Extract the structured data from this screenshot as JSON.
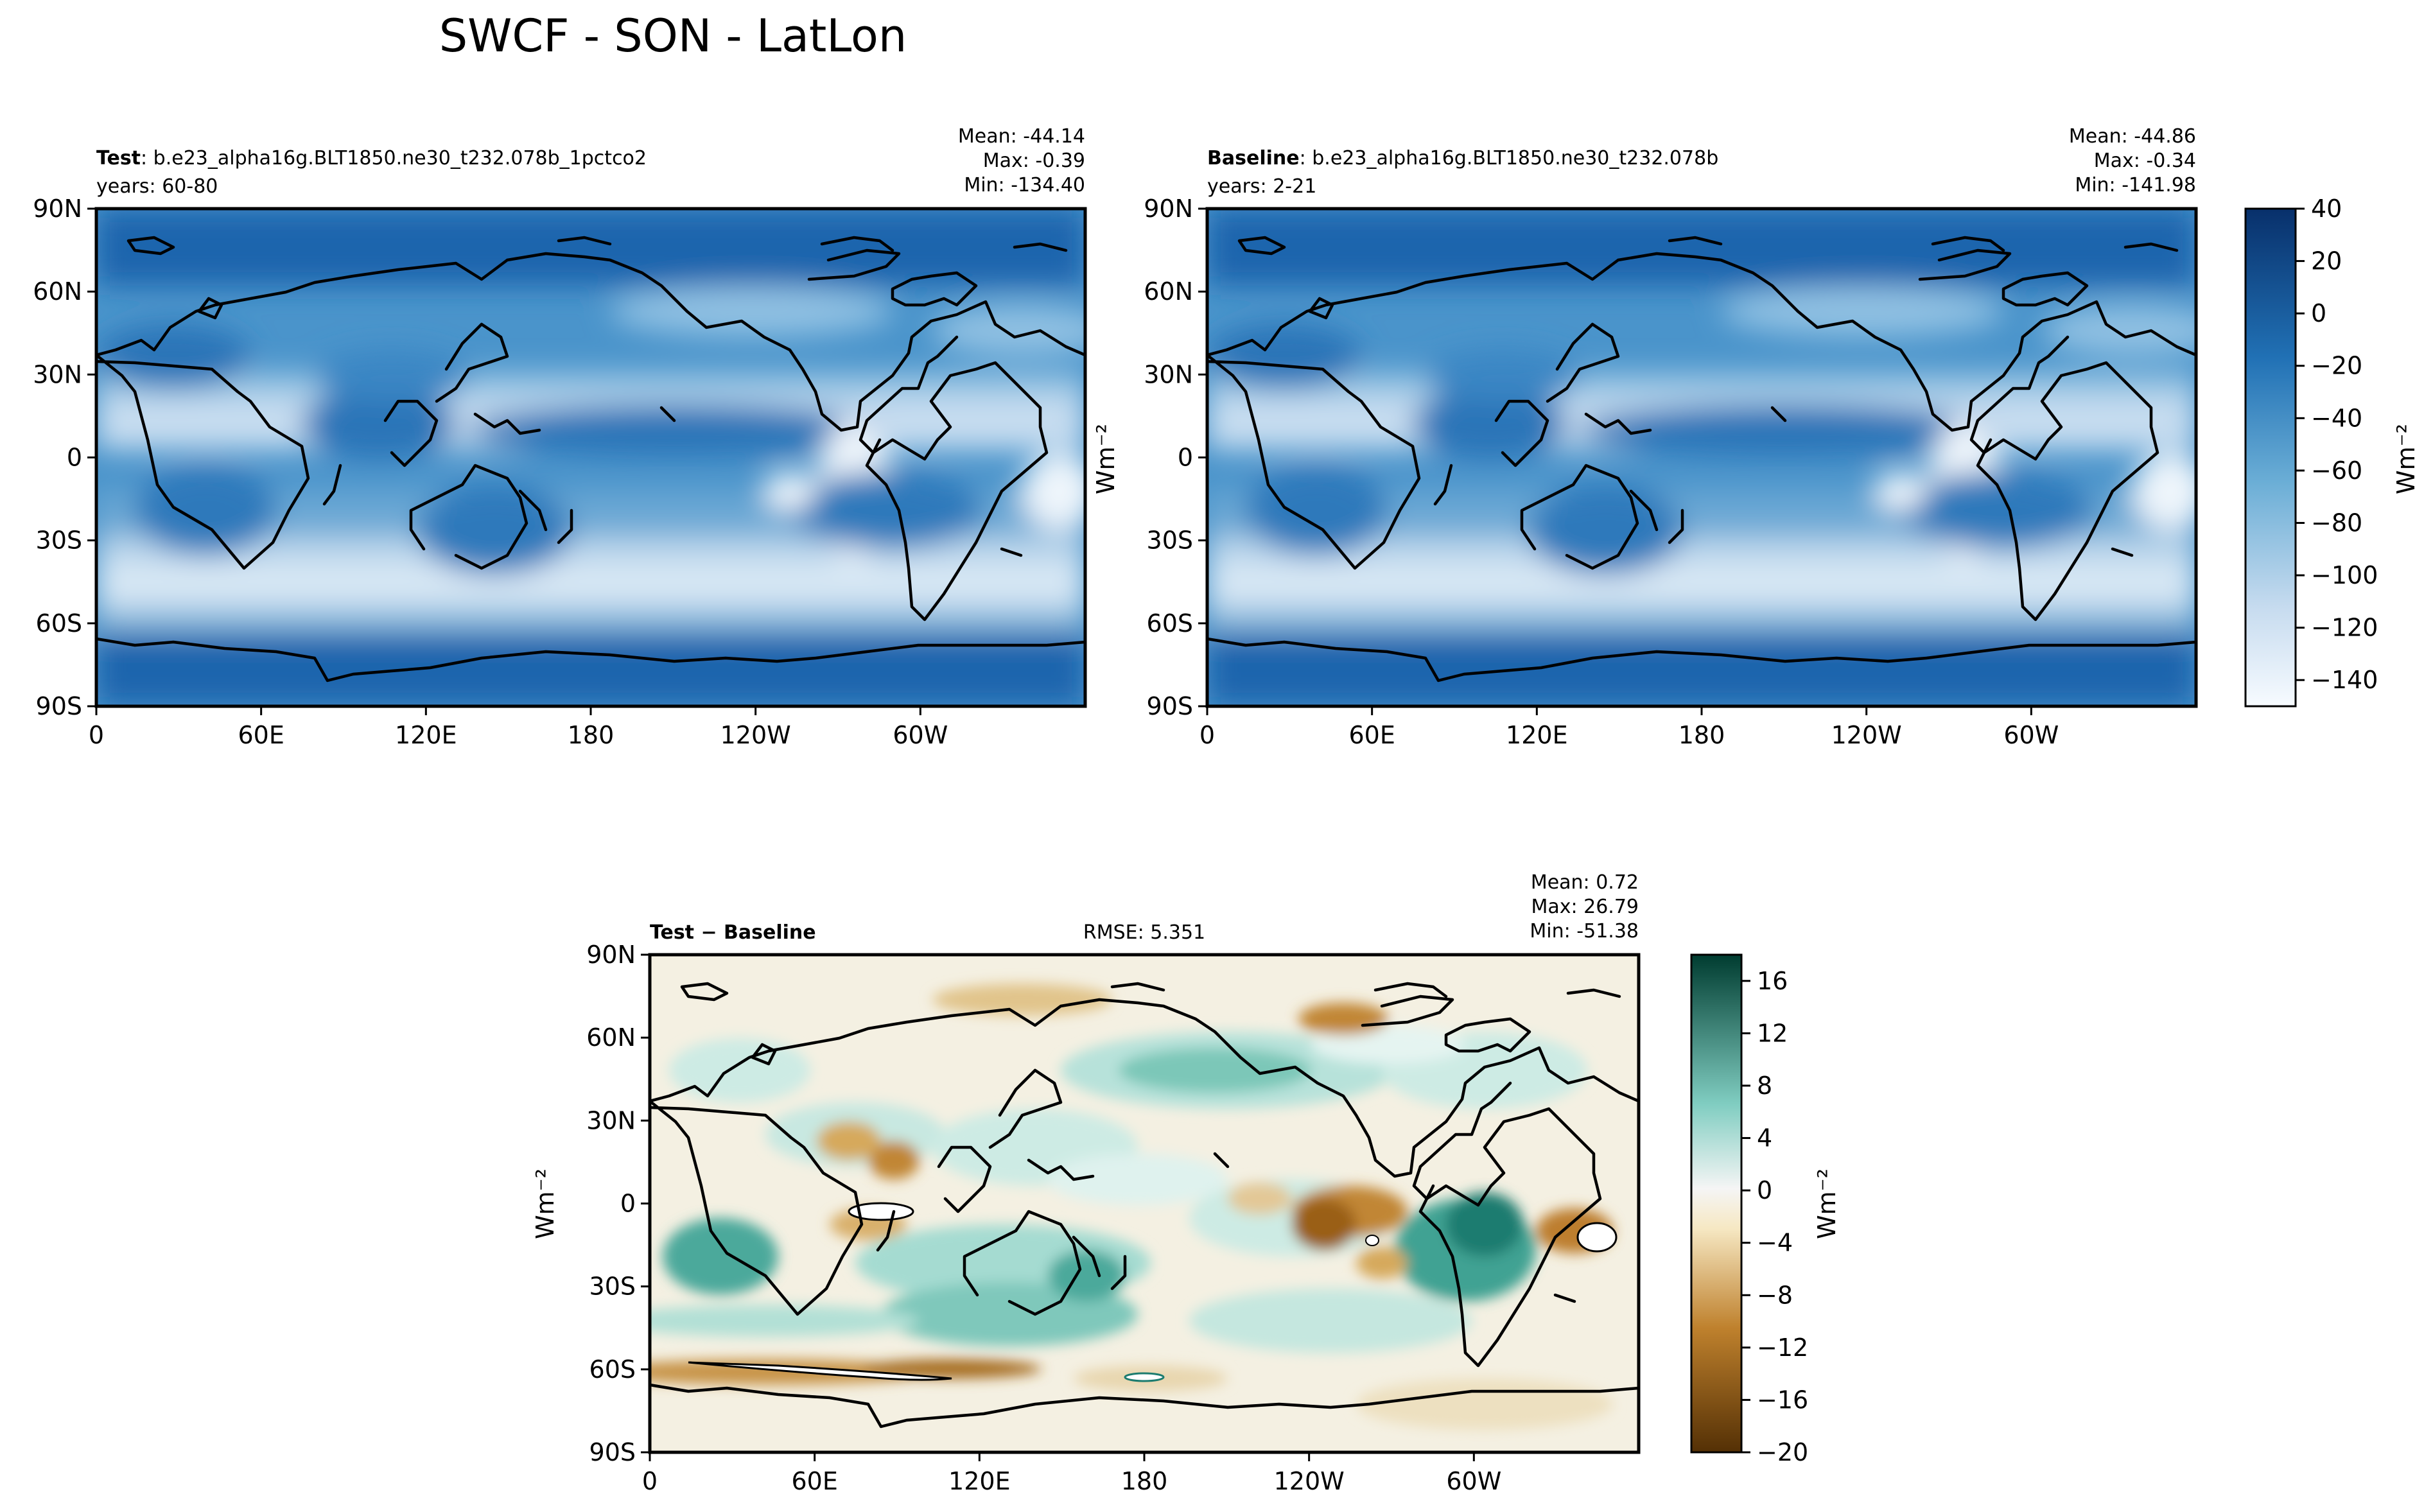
{
  "title": "SWCF - SON - LatLon",
  "colors": {
    "ocean_clim": "#5a9ecf",
    "contour": "#000000",
    "diff_neutral": "#f4f0e2"
  },
  "chart_data": [
    {
      "type": "heatmap",
      "panel": "test",
      "label_bold": "Test",
      "label_rest": ": b.e23_alpha16g.BLT1850.ne30_t232.078b_1pctco2",
      "years": "years: 60-80",
      "stats": [
        "Mean: -44.14",
        "Max: -0.39",
        "Min: -134.40"
      ],
      "xticks": [
        "0",
        "60E",
        "120E",
        "180",
        "120W",
        "60W"
      ],
      "yticks": [
        "90N",
        "60N",
        "30N",
        "0",
        "30S",
        "60S",
        "90S"
      ],
      "ylabel": "",
      "xlim": [
        0,
        360
      ],
      "ylim": [
        -90,
        90
      ]
    },
    {
      "type": "heatmap",
      "panel": "baseline",
      "label_bold": "Baseline",
      "label_rest": ": b.e23_alpha16g.BLT1850.ne30_t232.078b",
      "years": "years: 2-21",
      "stats": [
        "Mean: -44.86",
        "Max: -0.34",
        "Min: -141.98"
      ],
      "xticks": [
        "0",
        "60E",
        "120E",
        "180",
        "120W",
        "60W"
      ],
      "yticks": [
        "90N",
        "60N",
        "30N",
        "0",
        "30S",
        "60S",
        "90S"
      ],
      "ylabel": "Wm⁻²",
      "colorbar": {
        "ticks": [
          "40",
          "20",
          "0",
          "−20",
          "−40",
          "−60",
          "−80",
          "−100",
          "−120",
          "−140"
        ],
        "range": [
          -150,
          40
        ],
        "label": "Wm⁻²",
        "colormap": "Blues"
      },
      "xlim": [
        0,
        360
      ],
      "ylim": [
        -90,
        90
      ]
    },
    {
      "type": "heatmap",
      "panel": "difference",
      "label_bold": "Test − Baseline",
      "rmse": "RMSE: 5.351",
      "stats": [
        "Mean:  0.72",
        "Max: 26.79",
        "Min: -51.38"
      ],
      "xticks": [
        "0",
        "60E",
        "120E",
        "180",
        "120W",
        "60W"
      ],
      "yticks": [
        "90N",
        "60N",
        "30N",
        "0",
        "30S",
        "60S",
        "90S"
      ],
      "ylabel": "Wm⁻²",
      "colorbar": {
        "ticks": [
          "16",
          "12",
          "8",
          "4",
          "0",
          "−4",
          "−8",
          "−12",
          "−16",
          "−20"
        ],
        "range": [
          -20,
          18
        ],
        "label": "Wm⁻²",
        "colormap": "BrBG"
      },
      "xlim": [
        0,
        360
      ],
      "ylim": [
        -90,
        90
      ]
    }
  ]
}
